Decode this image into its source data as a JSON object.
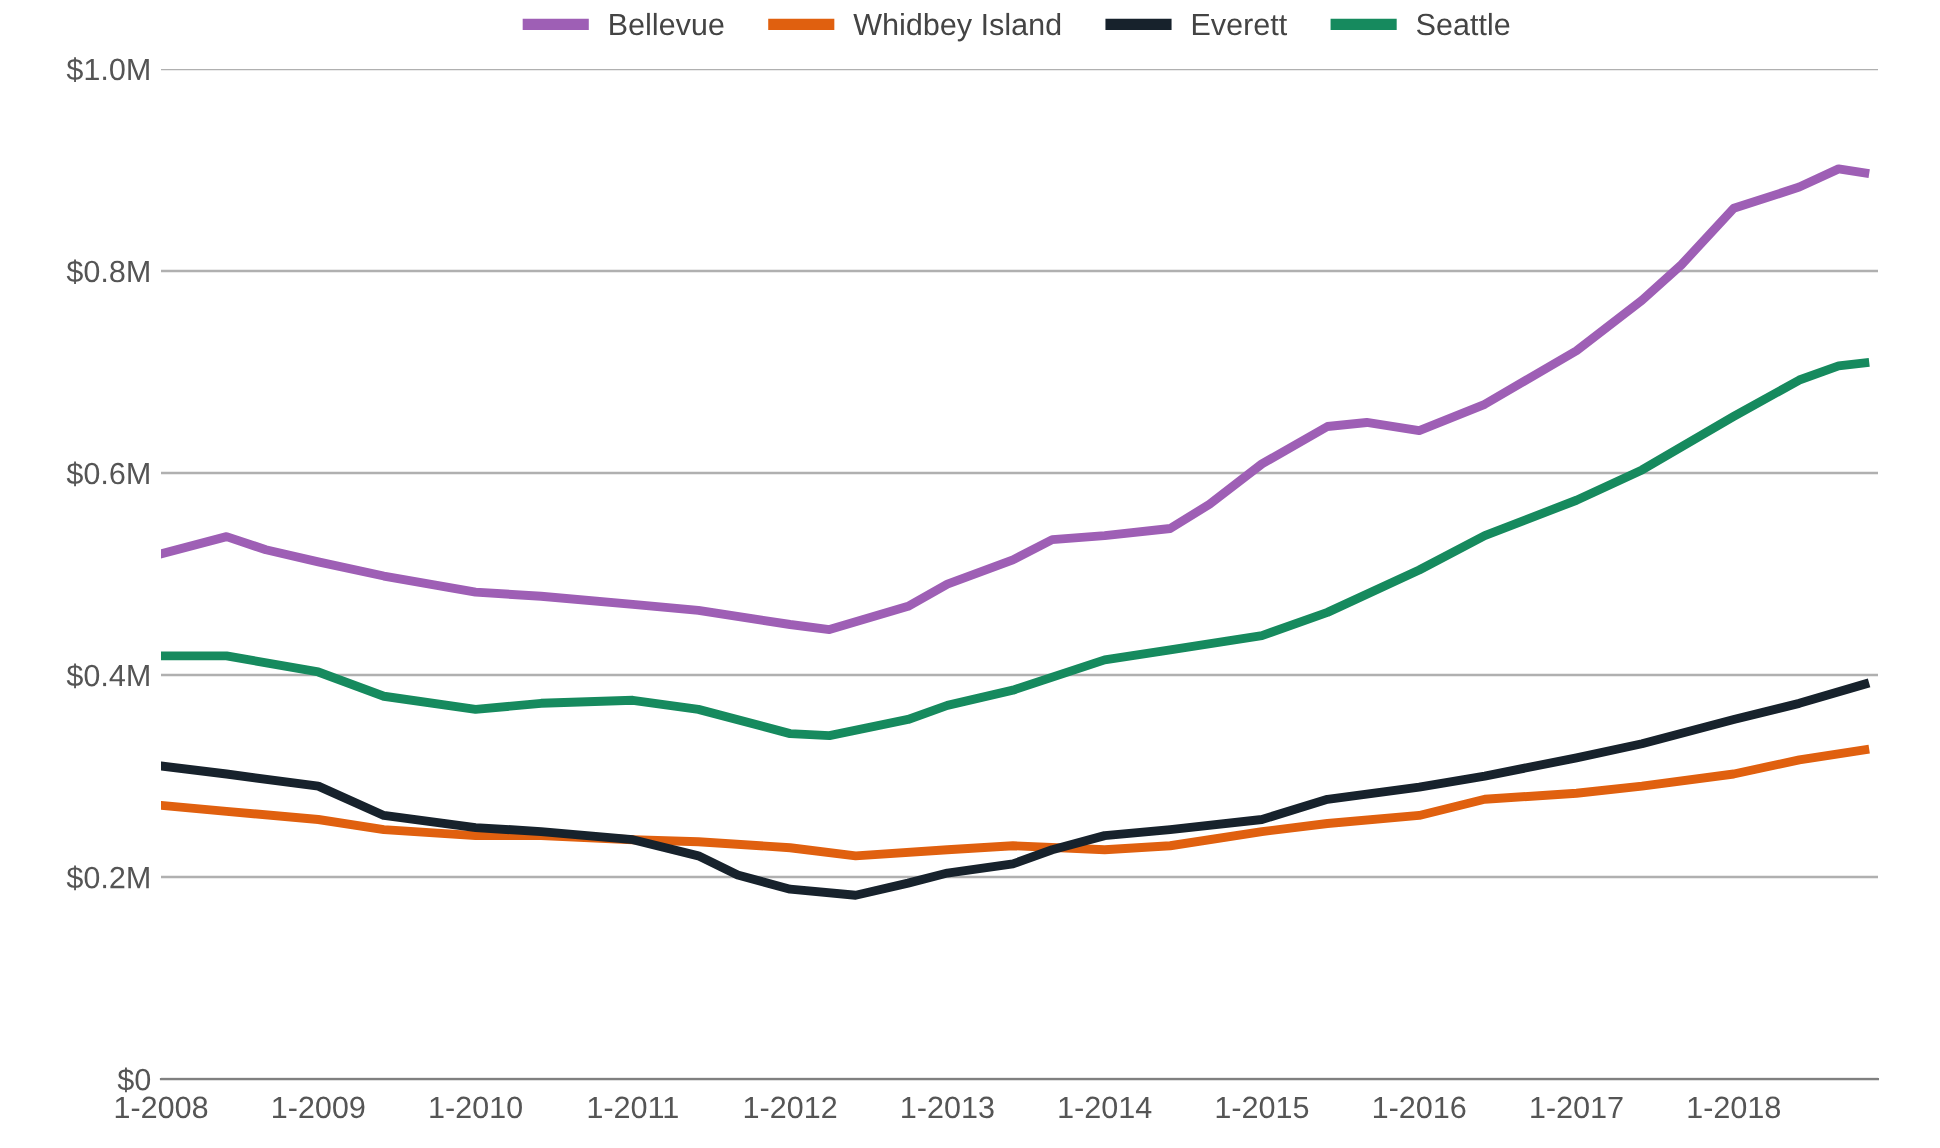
{
  "chart_data": {
    "type": "line",
    "grid": "y",
    "legend": "top",
    "marker": "none",
    "line_style": "solid",
    "xlim": [
      "2008-01",
      "2018-12"
    ],
    "ylim": [
      0,
      1.0
    ],
    "xticks": [
      {
        "value": "2008-01",
        "label": "1-2008"
      },
      {
        "value": "2009-01",
        "label": "1-2009"
      },
      {
        "value": "2010-01",
        "label": "1-2010"
      },
      {
        "value": "2011-01",
        "label": "1-2011"
      },
      {
        "value": "2012-01",
        "label": "1-2012"
      },
      {
        "value": "2013-01",
        "label": "1-2013"
      },
      {
        "value": "2014-01",
        "label": "1-2014"
      },
      {
        "value": "2015-01",
        "label": "1-2015"
      },
      {
        "value": "2016-01",
        "label": "1-2016"
      },
      {
        "value": "2017-01",
        "label": "1-2017"
      },
      {
        "value": "2018-01",
        "label": "1-2018"
      }
    ],
    "yticks": [
      {
        "value": 0,
        "label": "$0"
      },
      {
        "value": 0.2,
        "label": "$0.2M"
      },
      {
        "value": 0.4,
        "label": "$0.4M"
      },
      {
        "value": 0.6,
        "label": "$0.6M"
      },
      {
        "value": 0.8,
        "label": "$0.8M"
      },
      {
        "value": 1.0,
        "label": "$1.0M"
      }
    ],
    "series": [
      {
        "name": "Bellevue",
        "color": "#9e5fb5",
        "x": [
          "2008-01",
          "2008-06",
          "2008-09",
          "2009-01",
          "2009-06",
          "2010-01",
          "2010-06",
          "2011-01",
          "2011-06",
          "2012-01",
          "2012-04",
          "2012-10",
          "2013-01",
          "2013-06",
          "2013-09",
          "2014-01",
          "2014-06",
          "2014-09",
          "2015-01",
          "2015-06",
          "2015-09",
          "2016-01",
          "2016-06",
          "2017-01",
          "2017-06",
          "2017-09",
          "2018-01",
          "2018-06",
          "2018-09",
          "2018-11"
        ],
        "values": [
          0.52,
          0.537,
          0.524,
          0.512,
          0.498,
          0.482,
          0.478,
          0.47,
          0.464,
          0.45,
          0.445,
          0.468,
          0.49,
          0.514,
          0.534,
          0.538,
          0.545,
          0.569,
          0.609,
          0.646,
          0.65,
          0.642,
          0.668,
          0.721,
          0.771,
          0.806,
          0.862,
          0.883,
          0.901,
          0.897
        ]
      },
      {
        "name": "Whidbey Island",
        "color": "#e0600f",
        "x": [
          "2008-01",
          "2008-06",
          "2009-01",
          "2009-06",
          "2010-01",
          "2010-06",
          "2011-01",
          "2011-06",
          "2012-01",
          "2012-06",
          "2013-01",
          "2013-06",
          "2014-01",
          "2014-06",
          "2015-01",
          "2015-06",
          "2016-01",
          "2016-06",
          "2017-01",
          "2017-06",
          "2018-01",
          "2018-06",
          "2018-11"
        ],
        "values": [
          0.271,
          0.265,
          0.257,
          0.247,
          0.241,
          0.241,
          0.237,
          0.235,
          0.229,
          0.221,
          0.227,
          0.231,
          0.227,
          0.231,
          0.245,
          0.253,
          0.261,
          0.277,
          0.283,
          0.29,
          0.302,
          0.316,
          0.326
        ]
      },
      {
        "name": "Everett",
        "color": "#17222c",
        "x": [
          "2008-01",
          "2008-06",
          "2009-01",
          "2009-06",
          "2010-01",
          "2010-06",
          "2011-01",
          "2011-06",
          "2011-09",
          "2012-01",
          "2012-06",
          "2012-10",
          "2013-01",
          "2013-06",
          "2013-09",
          "2014-01",
          "2014-06",
          "2015-01",
          "2015-06",
          "2016-01",
          "2016-06",
          "2017-01",
          "2017-06",
          "2018-01",
          "2018-06",
          "2018-11"
        ],
        "values": [
          0.31,
          0.302,
          0.29,
          0.261,
          0.249,
          0.245,
          0.237,
          0.221,
          0.202,
          0.188,
          0.182,
          0.194,
          0.204,
          0.213,
          0.227,
          0.241,
          0.247,
          0.257,
          0.277,
          0.289,
          0.3,
          0.318,
          0.332,
          0.356,
          0.372,
          0.391
        ]
      },
      {
        "name": "Seattle",
        "color": "#168a5e",
        "x": [
          "2008-01",
          "2008-06",
          "2009-01",
          "2009-06",
          "2010-01",
          "2010-06",
          "2011-01",
          "2011-06",
          "2012-01",
          "2012-04",
          "2012-10",
          "2013-01",
          "2013-06",
          "2014-01",
          "2014-06",
          "2015-01",
          "2015-06",
          "2016-01",
          "2016-06",
          "2017-01",
          "2017-06",
          "2018-01",
          "2018-06",
          "2018-09",
          "2018-11"
        ],
        "values": [
          0.419,
          0.419,
          0.403,
          0.379,
          0.366,
          0.372,
          0.375,
          0.366,
          0.342,
          0.34,
          0.356,
          0.37,
          0.385,
          0.415,
          0.425,
          0.439,
          0.462,
          0.504,
          0.538,
          0.573,
          0.603,
          0.656,
          0.692,
          0.706,
          0.709
        ]
      }
    ]
  }
}
